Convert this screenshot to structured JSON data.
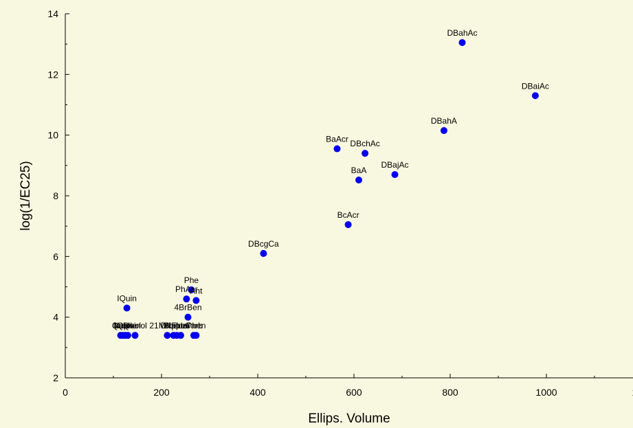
{
  "chart_data": {
    "type": "scatter",
    "title": "",
    "xlabel": "Ellips. Volume",
    "ylabel": "log(1/EC25)",
    "xlim": [
      0,
      1200
    ],
    "ylim": [
      2,
      14
    ],
    "xticks": [
      0,
      200,
      400,
      600,
      800,
      1000,
      1200
    ],
    "yticks": [
      2,
      4,
      6,
      8,
      10,
      12,
      14
    ],
    "x_tick_labels": [
      "0",
      "200",
      "400",
      "600",
      "800",
      "1000",
      "1200"
    ],
    "y_tick_labels": [
      "2",
      "4",
      "6",
      "8",
      "10",
      "12",
      "14"
    ],
    "grid": false,
    "point_color": "#0000ee",
    "points": [
      {
        "label": "DBahAc",
        "x": 825,
        "y": 13.05
      },
      {
        "label": "DBaiAc",
        "x": 977,
        "y": 11.3
      },
      {
        "label": "DBahA",
        "x": 787,
        "y": 10.15
      },
      {
        "label": "BaAcr",
        "x": 565,
        "y": 9.55
      },
      {
        "label": "DBchAc",
        "x": 623,
        "y": 9.4
      },
      {
        "label": "BaA",
        "x": 610,
        "y": 8.52
      },
      {
        "label": "DBajAc",
        "x": 685,
        "y": 8.7
      },
      {
        "label": "BcAcr",
        "x": 588,
        "y": 7.05
      },
      {
        "label": "DBcgCa",
        "x": 412,
        "y": 6.1
      },
      {
        "label": "IQuin",
        "x": 128,
        "y": 4.3
      },
      {
        "label": "Phe",
        "x": 262,
        "y": 4.9
      },
      {
        "label": "PhAcr",
        "x": 252,
        "y": 4.6
      },
      {
        "label": "Ant",
        "x": 272,
        "y": 4.55
      },
      {
        "label": "4BrBen",
        "x": 255,
        "y": 4.0
      },
      {
        "label": "Quin",
        "x": 115,
        "y": 3.4
      },
      {
        "label": "Naph",
        "x": 120,
        "y": 3.4
      },
      {
        "label": "Indole",
        "x": 125,
        "y": 3.4
      },
      {
        "label": "IQuinol",
        "x": 130,
        "y": 3.4
      },
      {
        "label": "Quinol",
        "x": 145,
        "y": 3.4
      },
      {
        "label": "21MNaph",
        "x": 212,
        "y": 3.4
      },
      {
        "label": "Dibenz",
        "x": 225,
        "y": 3.4
      },
      {
        "label": "Biphen",
        "x": 232,
        "y": 3.4
      },
      {
        "label": "Fluor",
        "x": 240,
        "y": 3.4
      },
      {
        "label": "Carb",
        "x": 267,
        "y": 3.4
      },
      {
        "label": "Phen",
        "x": 272,
        "y": 3.4
      }
    ]
  }
}
